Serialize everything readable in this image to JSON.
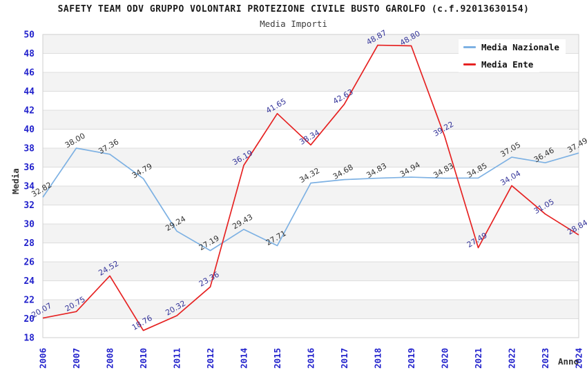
{
  "header": {
    "title": "SAFETY TEAM ODV GRUPPO VOLONTARI PROTEZIONE CIVILE BUSTO GAROLFO (c.f.92013630154)",
    "subtitle": "Media Importi"
  },
  "chart_data": {
    "type": "line",
    "title": "SAFETY TEAM ODV GRUPPO VOLONTARI PROTEZIONE CIVILE BUSTO GAROLFO (c.f.92013630154)",
    "subtitle": "Media Importi",
    "xlabel": "Anno",
    "ylabel": "Media",
    "ylim": [
      18,
      50
    ],
    "ytick_step": 2,
    "grid": "horizontal-bands",
    "legend_position": "top-right",
    "categories": [
      "2006",
      "2007",
      "2008",
      "2010",
      "2011",
      "2012",
      "2014",
      "2015",
      "2016",
      "2017",
      "2018",
      "2019",
      "2020",
      "2021",
      "2022",
      "2023",
      "2024"
    ],
    "series": [
      {
        "name": "Media Nazionale",
        "color": "#7db1e3",
        "label_color": "#333333",
        "values": [
          32.82,
          38.0,
          37.36,
          34.79,
          29.24,
          27.19,
          29.43,
          27.71,
          34.32,
          34.68,
          34.83,
          34.94,
          34.83,
          34.85,
          37.05,
          36.46,
          37.49
        ],
        "point_labels": [
          "32.82",
          "38.00",
          "37.36",
          "34.79",
          "29.24",
          "27.19",
          "29.43",
          "27.71",
          "34.32",
          "34.68",
          "34.83",
          "34.94",
          "34.83",
          "34.85",
          "37.05",
          "36.46",
          "37.49"
        ]
      },
      {
        "name": "Media Ente",
        "color": "#e62222",
        "label_color": "#333399",
        "values": [
          20.07,
          20.75,
          24.52,
          18.76,
          20.32,
          23.36,
          36.19,
          41.65,
          38.34,
          42.63,
          48.87,
          48.8,
          39.22,
          27.49,
          34.04,
          31.05,
          28.84
        ],
        "point_labels": [
          "20.07",
          "20.75",
          "24.52",
          "18.76",
          "20.32",
          "23.36",
          "36.19",
          "41.65",
          "38.34",
          "42.63",
          "48.87",
          "48.80",
          "39.22",
          "27.49",
          "34.04",
          "31.05",
          "28.84"
        ]
      }
    ],
    "style": {
      "tick_color": "#2222cc",
      "band_colors": [
        "#f3f3f3",
        "#ffffff"
      ],
      "gridline_color": "#dcdcdc",
      "border_color": "#cfcfcf"
    }
  }
}
